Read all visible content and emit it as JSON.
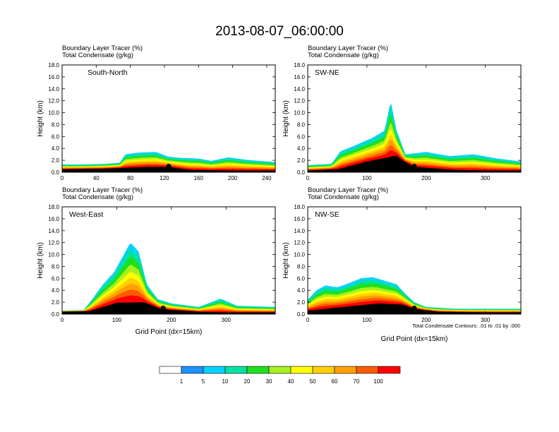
{
  "figure": {
    "title": "2013-08-07_06:00:00",
    "contour_note": "Total Condensate Contours: .01 to .01 by .000"
  },
  "chart_data": [
    {
      "type": "heatmap",
      "panel": "top-left",
      "subtitle": [
        "Boundary Layer Tracer   (%)",
        "Total Condensate   (g/kg)"
      ],
      "label": "South-North",
      "ylabel": "Height (km)",
      "xlabel": "",
      "xlim": [
        0,
        250
      ],
      "ylim": [
        0,
        18
      ],
      "xticks": [
        0,
        40,
        80,
        120,
        160,
        200,
        240
      ],
      "yticks": [
        0,
        2,
        4,
        6,
        8,
        10,
        12,
        14,
        16,
        18
      ],
      "tracer_top": [
        [
          0,
          1.3
        ],
        [
          25,
          1.3
        ],
        [
          50,
          1.4
        ],
        [
          68,
          1.6
        ],
        [
          74,
          3.0
        ],
        [
          90,
          3.3
        ],
        [
          110,
          3.4
        ],
        [
          125,
          2.6
        ],
        [
          140,
          2.4
        ],
        [
          160,
          2.3
        ],
        [
          175,
          1.9
        ],
        [
          195,
          2.5
        ],
        [
          215,
          2.1
        ],
        [
          240,
          1.8
        ],
        [
          250,
          1.7
        ]
      ],
      "terrain": [
        [
          0,
          0.5
        ],
        [
          50,
          0.6
        ],
        [
          100,
          0.9
        ],
        [
          125,
          0.9
        ],
        [
          150,
          0.4
        ],
        [
          200,
          0.3
        ],
        [
          250,
          0.3
        ]
      ],
      "markers": [
        {
          "x": 125,
          "y": 1.0
        }
      ]
    },
    {
      "type": "heatmap",
      "panel": "top-right",
      "subtitle": [
        "Boundary Layer Tracer   (%)",
        "Total Condensate   (g/kg)"
      ],
      "label": "SW-NE",
      "ylabel": "Height (km)",
      "xlabel": "",
      "xlim": [
        0,
        360
      ],
      "ylim": [
        0,
        18
      ],
      "xticks": [
        0,
        100,
        200,
        300
      ],
      "yticks": [
        0,
        2,
        4,
        6,
        8,
        10,
        12,
        14,
        16,
        18
      ],
      "tracer_top": [
        [
          0,
          1.2
        ],
        [
          40,
          1.4
        ],
        [
          55,
          3.5
        ],
        [
          80,
          4.5
        ],
        [
          110,
          5.8
        ],
        [
          130,
          7.0
        ],
        [
          140,
          12.0
        ],
        [
          150,
          7.0
        ],
        [
          165,
          3.0
        ],
        [
          200,
          3.4
        ],
        [
          240,
          2.7
        ],
        [
          280,
          3.0
        ],
        [
          320,
          2.3
        ],
        [
          360,
          1.8
        ]
      ],
      "terrain": [
        [
          0,
          0.3
        ],
        [
          50,
          0.5
        ],
        [
          100,
          1.8
        ],
        [
          150,
          2.8
        ],
        [
          160,
          2.0
        ],
        [
          180,
          0.9
        ],
        [
          250,
          0.4
        ],
        [
          300,
          0.3
        ],
        [
          360,
          0.3
        ]
      ],
      "markers": [
        {
          "x": 180,
          "y": 1.0
        }
      ]
    },
    {
      "type": "heatmap",
      "panel": "bottom-left",
      "subtitle": [
        "Boundary Layer Tracer   (%)",
        "Total Condensate   (g/kg)"
      ],
      "label": "West-East",
      "ylabel": "Height (km)",
      "xlabel": "Grid Point (dx=15km)",
      "xlim": [
        0,
        390
      ],
      "ylim": [
        0,
        18
      ],
      "xticks": [
        0,
        100,
        200,
        300
      ],
      "yticks": [
        0,
        2,
        4,
        6,
        8,
        10,
        12,
        14,
        16,
        18
      ],
      "tracer_top": [
        [
          0,
          0.6
        ],
        [
          40,
          0.7
        ],
        [
          55,
          2.5
        ],
        [
          75,
          5.0
        ],
        [
          95,
          7.0
        ],
        [
          110,
          9.5
        ],
        [
          125,
          12.0
        ],
        [
          140,
          10.5
        ],
        [
          155,
          5.0
        ],
        [
          175,
          2.5
        ],
        [
          200,
          1.8
        ],
        [
          250,
          1.2
        ],
        [
          290,
          2.6
        ],
        [
          320,
          1.4
        ],
        [
          390,
          1.2
        ]
      ],
      "terrain": [
        [
          0,
          0.4
        ],
        [
          50,
          0.5
        ],
        [
          100,
          1.9
        ],
        [
          150,
          2.0
        ],
        [
          180,
          0.9
        ],
        [
          200,
          0.7
        ],
        [
          250,
          0.4
        ],
        [
          300,
          0.3
        ],
        [
          390,
          0.3
        ]
      ],
      "markers": [
        {
          "x": 185,
          "y": 1.0
        }
      ]
    },
    {
      "type": "heatmap",
      "panel": "bottom-right",
      "subtitle": [
        "Boundary Layer Tracer   (%)",
        "Total Condensate   (g/kg)"
      ],
      "label": "NW-SE",
      "ylabel": "Height (km)",
      "xlabel": "Grid Point (dx=15km)",
      "xlim": [
        0,
        360
      ],
      "ylim": [
        0,
        18
      ],
      "xticks": [
        0,
        100,
        200,
        300
      ],
      "yticks": [
        0,
        2,
        4,
        6,
        8,
        10,
        12,
        14,
        16,
        18
      ],
      "tracer_top": [
        [
          0,
          2.4
        ],
        [
          15,
          4.0
        ],
        [
          30,
          4.8
        ],
        [
          50,
          4.5
        ],
        [
          70,
          5.2
        ],
        [
          90,
          6.0
        ],
        [
          110,
          6.2
        ],
        [
          130,
          5.6
        ],
        [
          150,
          5.0
        ],
        [
          165,
          3.4
        ],
        [
          180,
          2.0
        ],
        [
          200,
          1.2
        ],
        [
          250,
          0.9
        ],
        [
          300,
          0.9
        ],
        [
          360,
          0.9
        ]
      ],
      "terrain": [
        [
          0,
          0.6
        ],
        [
          60,
          1.2
        ],
        [
          120,
          1.8
        ],
        [
          160,
          1.6
        ],
        [
          180,
          0.9
        ],
        [
          220,
          0.4
        ],
        [
          300,
          0.3
        ],
        [
          360,
          0.3
        ]
      ],
      "markers": [
        {
          "x": 180,
          "y": 1.0
        }
      ]
    }
  ],
  "colorbar": {
    "labels": [
      "1",
      "5",
      "10",
      "20",
      "30",
      "40",
      "50",
      "60",
      "70",
      "100"
    ],
    "colors": [
      "#ffffff",
      "#1e90ff",
      "#00d2ff",
      "#00e2a0",
      "#1fe01f",
      "#a8f020",
      "#ffff00",
      "#ffd000",
      "#ffa000",
      "#ff5a00",
      "#ff0000"
    ]
  }
}
